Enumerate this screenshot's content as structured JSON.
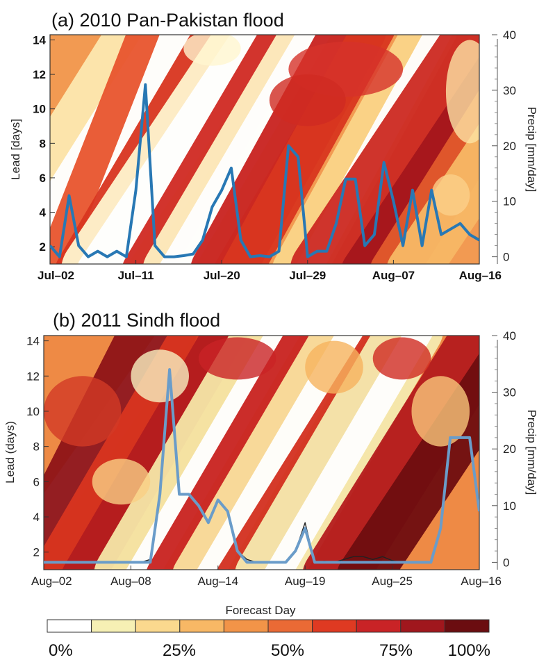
{
  "colorbar": {
    "colors": [
      "#ffffff",
      "#f6f0b4",
      "#fbd98e",
      "#f8b865",
      "#f29448",
      "#ea6a35",
      "#df3a22",
      "#c92326",
      "#a0171d",
      "#6b0d10"
    ],
    "labels": [
      "0%",
      "25%",
      "50%",
      "75%",
      "100%"
    ]
  },
  "chart_data": [
    {
      "type": "heatmap",
      "title": "(a) 2010 Pan-Pakistan flood",
      "ylabel": "Lead [days]",
      "y2label": "Precip [mm/day]",
      "xticks": [
        "Jul–02",
        "Jul–11",
        "Jul–20",
        "Jul–29",
        "Aug–07",
        "Aug–16"
      ],
      "yticks": [
        2,
        4,
        6,
        8,
        10,
        12,
        14
      ],
      "y2ticks": [
        0,
        10,
        20,
        30,
        40
      ],
      "ylim": [
        1,
        14.3
      ],
      "y2lim": [
        -1.3,
        40
      ],
      "ndays": 46,
      "background": "#f29a52",
      "bands": [
        {
          "x0": -3,
          "x1": 13,
          "c": "#fde9b0",
          "w": 22
        },
        {
          "x0": -2,
          "x1": 14,
          "c": "#ffffff",
          "w": 12
        },
        {
          "x0": 0,
          "x1": 10,
          "c": "#e8552e",
          "w": 6
        },
        {
          "x0": 3,
          "x1": 18,
          "c": "#d9351f",
          "w": 9
        },
        {
          "x0": 5,
          "x1": 22,
          "c": "#fff6cf",
          "w": 14
        },
        {
          "x0": 5,
          "x1": 22,
          "c": "#ffffff",
          "w": 8
        },
        {
          "x0": 10,
          "x1": 25,
          "c": "#d02a22",
          "w": 9
        },
        {
          "x0": 13,
          "x1": 28,
          "c": "#fff1c2",
          "w": 12
        },
        {
          "x0": 13,
          "x1": 28,
          "c": "#ffffff",
          "w": 6
        },
        {
          "x0": 18,
          "x1": 32,
          "c": "#c9221f",
          "w": 12
        },
        {
          "x0": 20,
          "x1": 34,
          "c": "#d9361f",
          "w": 8
        },
        {
          "x0": 26,
          "x1": 40,
          "c": "#fbd589",
          "w": 10
        },
        {
          "x0": 27,
          "x1": 41,
          "c": "#ffffff",
          "w": 5
        },
        {
          "x0": 29,
          "x1": 46,
          "c": "#cd2a22",
          "w": 14
        },
        {
          "x0": 33,
          "x1": 50,
          "c": "#a5161c",
          "w": 9
        },
        {
          "x0": 36,
          "x1": 52,
          "c": "#e25a2c",
          "w": 9
        },
        {
          "x0": 38,
          "x1": 55,
          "c": "#f8b865",
          "w": 10
        }
      ],
      "blobs": [
        {
          "x": 31,
          "y": 12.3,
          "rx": 6,
          "ry": 1.6,
          "c": "#d6322a"
        },
        {
          "x": 27,
          "y": 10.5,
          "rx": 4,
          "ry": 1.5,
          "c": "#d02a22"
        },
        {
          "x": 44,
          "y": 11,
          "rx": 2.5,
          "ry": 3,
          "c": "#fde3a5"
        },
        {
          "x": 42,
          "y": 5,
          "rx": 2,
          "ry": 1.2,
          "c": "#fbd08a"
        },
        {
          "x": 17,
          "y": 13.5,
          "rx": 3,
          "ry": 1,
          "c": "#fff6cf"
        }
      ],
      "series": [
        {
          "color": "#2878b4",
          "x": [
            0,
            1,
            2,
            3,
            4,
            5,
            6,
            7,
            8,
            9,
            10,
            11,
            12,
            13,
            14,
            15,
            16,
            17,
            18,
            19,
            20,
            21,
            22,
            23,
            24,
            25,
            26,
            27,
            28,
            29,
            30,
            31,
            32,
            33,
            34,
            35,
            36,
            37,
            38,
            39,
            40,
            41,
            42,
            43,
            44,
            45
          ],
          "values": [
            2,
            0,
            11,
            2,
            0,
            1,
            0,
            1,
            0,
            12,
            31,
            2,
            0,
            0,
            0.2,
            0.5,
            3,
            9,
            12,
            16,
            3,
            0,
            0.2,
            0,
            1,
            20,
            18,
            0,
            1,
            1,
            6,
            14,
            14,
            2,
            4,
            17,
            10,
            2,
            12,
            2,
            12,
            4,
            5,
            6,
            4,
            3
          ]
        }
      ]
    },
    {
      "type": "heatmap",
      "title": "(b) 2011 Sindh flood",
      "ylabel": "Lead (days)",
      "xlabel": "Forecast Day",
      "y2label": "Precip [mm/day]",
      "xticks": [
        "Aug–02",
        "Aug–08",
        "Aug–14",
        "Aug–19",
        "Aug–25",
        "Aug–16"
      ],
      "yticks": [
        2,
        4,
        6,
        8,
        10,
        12,
        14
      ],
      "y2ticks": [
        0,
        10,
        20,
        30,
        40
      ],
      "ylim": [
        1,
        14.3
      ],
      "y2lim": [
        -1.3,
        40
      ],
      "ndays": 46,
      "background": "#ee8a45",
      "bands": [
        {
          "x0": -4,
          "x1": 14,
          "c": "#ffffff",
          "w": 6
        },
        {
          "x0": -1,
          "x1": 12,
          "c": "#8f1317",
          "w": 14
        },
        {
          "x0": 2,
          "x1": 17,
          "c": "#d9351f",
          "w": 12
        },
        {
          "x0": 4,
          "x1": 19,
          "c": "#b41c1e",
          "w": 8
        },
        {
          "x0": 9,
          "x1": 24,
          "c": "#f6e7a7",
          "w": 14
        },
        {
          "x0": 10,
          "x1": 25,
          "c": "#ffffff",
          "w": 6
        },
        {
          "x0": 13,
          "x1": 28,
          "c": "#c9221f",
          "w": 9
        },
        {
          "x0": 16,
          "x1": 31,
          "c": "#fbe3a0",
          "w": 10
        },
        {
          "x0": 17,
          "x1": 32,
          "c": "#ffffff",
          "w": 5
        },
        {
          "x0": 20,
          "x1": 36,
          "c": "#d3301f",
          "w": 8
        },
        {
          "x0": 23,
          "x1": 38,
          "c": "#f6ebb0",
          "w": 12
        },
        {
          "x0": 24,
          "x1": 39,
          "c": "#ffffff",
          "w": 5
        },
        {
          "x0": 30,
          "x1": 46,
          "c": "#b51c1d",
          "w": 12
        },
        {
          "x0": 33,
          "x1": 50,
          "c": "#6f0d10",
          "w": 10
        }
      ],
      "blobs": [
        {
          "x": 4,
          "y": 10,
          "rx": 4,
          "ry": 2,
          "c": "#d23a25"
        },
        {
          "x": 12,
          "y": 12,
          "rx": 3,
          "ry": 1.5,
          "c": "#f8f0c0"
        },
        {
          "x": 20,
          "y": 13,
          "rx": 4,
          "ry": 1.2,
          "c": "#c92326"
        },
        {
          "x": 30,
          "y": 12.5,
          "rx": 3,
          "ry": 1.5,
          "c": "#f6b35e"
        },
        {
          "x": 37,
          "y": 13,
          "rx": 3,
          "ry": 1.2,
          "c": "#d02a22"
        },
        {
          "x": 41,
          "y": 10,
          "rx": 3,
          "ry": 2,
          "c": "#f9c77a"
        },
        {
          "x": 8,
          "y": 6,
          "rx": 3,
          "ry": 1.3,
          "c": "#f9d084"
        }
      ],
      "series": [
        {
          "color": "#222222",
          "width": 1.4,
          "x": [
            0,
            1,
            2,
            3,
            4,
            5,
            6,
            7,
            8,
            9,
            10,
            11,
            12,
            13,
            14,
            15,
            16,
            17,
            18,
            19,
            20,
            21,
            22,
            23,
            24,
            25,
            26,
            27,
            28,
            29,
            30,
            31,
            32,
            33,
            34,
            35,
            36,
            37,
            38,
            39,
            40,
            41,
            42,
            43,
            44,
            45
          ],
          "values": [
            0,
            0,
            0,
            0,
            0,
            0,
            0,
            0,
            0,
            0,
            0,
            0.5,
            12,
            34,
            12,
            12,
            10,
            7,
            11,
            9,
            2,
            0.5,
            0,
            0,
            0,
            0,
            2,
            7,
            0,
            0.2,
            0,
            0.5,
            1,
            1,
            0.5,
            1,
            0.3,
            0,
            0,
            0,
            0,
            6,
            22,
            22,
            22,
            9
          ]
        },
        {
          "color": "#6a9cc9",
          "width": 4,
          "x": [
            0,
            1,
            2,
            3,
            4,
            5,
            6,
            7,
            8,
            9,
            10,
            11,
            12,
            13,
            14,
            15,
            16,
            17,
            18,
            19,
            20,
            21,
            22,
            23,
            24,
            25,
            26,
            27,
            28,
            29,
            30,
            31,
            32,
            33,
            34,
            35,
            36,
            37,
            38,
            39,
            40,
            41,
            42,
            43,
            44,
            45
          ],
          "values": [
            0,
            0,
            0,
            0,
            0,
            0,
            0,
            0,
            0,
            0,
            0,
            0,
            12,
            34,
            12,
            12,
            10,
            7,
            11,
            9,
            2,
            0,
            0,
            0,
            0,
            0,
            2,
            6,
            0,
            0,
            0,
            0,
            0,
            0,
            0,
            0,
            0,
            0,
            0,
            0,
            0,
            6,
            22,
            22,
            22,
            9
          ]
        }
      ]
    }
  ]
}
